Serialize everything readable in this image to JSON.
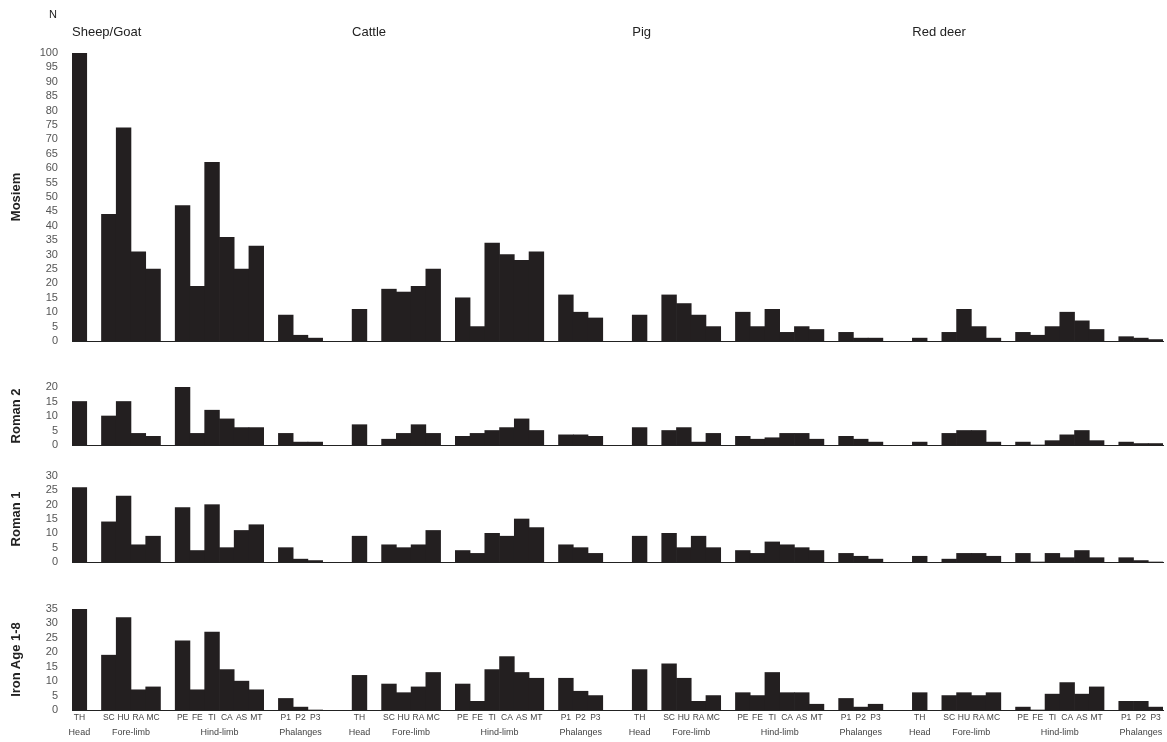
{
  "chart_data": [
    {
      "type": "bar",
      "ylabel": "Mosiem",
      "annotations": [
        "N",
        "Sheep/Goat",
        "Cattle",
        "Pig",
        "Red deer"
      ],
      "categories": [
        null,
        null,
        null,
        null,
        null,
        null,
        null,
        null,
        null,
        null,
        null,
        null,
        null,
        null,
        null,
        null,
        null,
        null,
        null,
        null,
        null,
        null,
        null,
        null,
        null,
        null,
        null,
        null,
        null,
        null,
        null,
        null,
        null,
        null,
        null,
        null,
        null,
        null,
        null,
        null,
        null,
        null,
        null,
        null,
        null,
        null,
        null,
        null,
        null,
        null,
        null,
        null,
        null,
        null,
        null,
        null,
        null,
        null,
        null,
        null,
        null,
        null,
        null,
        null,
        null,
        null,
        null,
        null,
        null,
        null,
        null,
        null,
        null,
        null
      ],
      "series": [
        {
          "color": "#231f20",
          "values": [
            100,
            null,
            44,
            74,
            31,
            25,
            null,
            47,
            19,
            62,
            36,
            25,
            33,
            null,
            9,
            2,
            1,
            null,
            null,
            null,
            null,
            null,
            null,
            null,
            null,
            null,
            null,
            null,
            null,
            null,
            null,
            null,
            null,
            null,
            null,
            null,
            null,
            null,
            null,
            null,
            null,
            null,
            null,
            null,
            null,
            null,
            null,
            null,
            null,
            null,
            null,
            null,
            null,
            null,
            null,
            null,
            null,
            null,
            null,
            null,
            null,
            null,
            null,
            null,
            null,
            null,
            null,
            null,
            null,
            null,
            null,
            null,
            null,
            null
          ]
        },
        {
          "color": "#231f20",
          "values": [
            null,
            null,
            null,
            null,
            null,
            null,
            null,
            null,
            null,
            null,
            null,
            null,
            null,
            null,
            null,
            null,
            null,
            null,
            null,
            11,
            null,
            18,
            17,
            19,
            25,
            null,
            15,
            5,
            34,
            30,
            28,
            31,
            null,
            16,
            10,
            8,
            null,
            null,
            null,
            null,
            null,
            null,
            null,
            null,
            null,
            null,
            null,
            null,
            null,
            null,
            null,
            null,
            null,
            null,
            null,
            null,
            null,
            null,
            null,
            null,
            null,
            null,
            null,
            null,
            null,
            null,
            null,
            null,
            null,
            null,
            null,
            null,
            null,
            null
          ]
        },
        {
          "color": "#231f20",
          "values": [
            null,
            null,
            null,
            null,
            null,
            null,
            null,
            null,
            null,
            null,
            null,
            null,
            null,
            null,
            null,
            null,
            null,
            null,
            null,
            null,
            null,
            null,
            null,
            null,
            null,
            null,
            null,
            null,
            null,
            null,
            null,
            null,
            null,
            null,
            null,
            null,
            null,
            null,
            9,
            null,
            16,
            13,
            9,
            5,
            null,
            10,
            5,
            11,
            3,
            5,
            4,
            null,
            3,
            1,
            1,
            null,
            null,
            null,
            null,
            null,
            null,
            null,
            null,
            null,
            null,
            null,
            null,
            null,
            null,
            null,
            null,
            null,
            null,
            null
          ]
        },
        {
          "color": "#231f20",
          "values": [
            null,
            null,
            null,
            null,
            null,
            null,
            null,
            null,
            null,
            null,
            null,
            null,
            null,
            null,
            null,
            null,
            null,
            null,
            null,
            null,
            null,
            null,
            null,
            null,
            null,
            null,
            null,
            null,
            null,
            null,
            null,
            null,
            null,
            null,
            null,
            null,
            null,
            null,
            null,
            null,
            null,
            null,
            null,
            null,
            null,
            null,
            null,
            null,
            null,
            null,
            null,
            null,
            null,
            null,
            null,
            null,
            null,
            1,
            null,
            3,
            11,
            5,
            1,
            null,
            3,
            2,
            5,
            10,
            7,
            4,
            null,
            1.5,
            1,
            0.5
          ]
        }
      ],
      "ylim": [
        0,
        100
      ],
      "yticks": [
        0,
        5,
        10,
        15,
        20,
        25,
        30,
        35,
        40,
        45,
        50,
        55,
        60,
        65,
        70,
        75,
        80,
        85,
        90,
        95,
        100
      ],
      "tick_labels": "y",
      "legend": false
    },
    {
      "type": "bar",
      "ylabel": "Roman 2",
      "categories": [
        null,
        null,
        null,
        null,
        null,
        null,
        null,
        null,
        null,
        null,
        null,
        null,
        null,
        null,
        null,
        null,
        null,
        null,
        null,
        null,
        null,
        null,
        null,
        null,
        null,
        null,
        null,
        null,
        null,
        null,
        null,
        null,
        null,
        null,
        null,
        null,
        null,
        null,
        null,
        null,
        null,
        null,
        null,
        null,
        null,
        null,
        null,
        null,
        null,
        null,
        null,
        null,
        null,
        null,
        null,
        null,
        null,
        null,
        null,
        null,
        null,
        null,
        null,
        null,
        null,
        null,
        null,
        null,
        null,
        null,
        null,
        null,
        null,
        null
      ],
      "series": [
        {
          "color": "#231f20",
          "values": [
            15,
            null,
            10,
            15,
            4,
            3,
            null,
            20,
            4,
            12,
            9,
            6,
            6,
            null,
            4,
            1,
            1,
            null,
            null,
            null,
            null,
            null,
            null,
            null,
            null,
            null,
            null,
            null,
            null,
            null,
            null,
            null,
            null,
            null,
            null,
            null,
            null,
            null,
            null,
            null,
            null,
            null,
            null,
            null,
            null,
            null,
            null,
            null,
            null,
            null,
            null,
            null,
            null,
            null,
            null,
            null,
            null,
            null,
            null,
            null,
            null,
            null,
            null,
            null,
            null,
            null,
            null,
            null,
            null,
            null,
            null,
            null,
            null,
            null
          ]
        },
        {
          "color": "#231f20",
          "values": [
            null,
            null,
            null,
            null,
            null,
            null,
            null,
            null,
            null,
            null,
            null,
            null,
            null,
            null,
            null,
            null,
            null,
            null,
            null,
            7,
            null,
            2,
            4,
            7,
            4,
            null,
            3,
            4,
            5,
            6,
            9,
            5,
            null,
            3.5,
            3.5,
            3,
            null,
            null,
            null,
            null,
            null,
            null,
            null,
            null,
            null,
            null,
            null,
            null,
            null,
            null,
            null,
            null,
            null,
            null,
            null,
            null,
            null,
            null,
            null,
            null,
            null,
            null,
            null,
            null,
            null,
            null,
            null,
            null,
            null,
            null,
            null,
            null,
            null,
            null
          ]
        },
        {
          "color": "#231f20",
          "values": [
            null,
            null,
            null,
            null,
            null,
            null,
            null,
            null,
            null,
            null,
            null,
            null,
            null,
            null,
            null,
            null,
            null,
            null,
            null,
            null,
            null,
            null,
            null,
            null,
            null,
            null,
            null,
            null,
            null,
            null,
            null,
            null,
            null,
            null,
            null,
            null,
            null,
            null,
            6,
            null,
            5,
            6,
            1,
            4,
            null,
            3,
            2,
            2.5,
            4,
            4,
            2,
            null,
            3,
            2,
            1,
            null,
            null,
            null,
            null,
            null,
            null,
            null,
            null,
            null,
            null,
            null,
            null,
            null,
            null,
            null,
            null,
            null,
            null,
            null
          ]
        },
        {
          "color": "#231f20",
          "values": [
            null,
            null,
            null,
            null,
            null,
            null,
            null,
            null,
            null,
            null,
            null,
            null,
            null,
            null,
            null,
            null,
            null,
            null,
            null,
            null,
            null,
            null,
            null,
            null,
            null,
            null,
            null,
            null,
            null,
            null,
            null,
            null,
            null,
            null,
            null,
            null,
            null,
            null,
            null,
            null,
            null,
            null,
            null,
            null,
            null,
            null,
            null,
            null,
            null,
            null,
            null,
            null,
            null,
            null,
            null,
            null,
            null,
            1,
            null,
            4,
            5,
            5,
            1,
            null,
            1,
            0,
            1.5,
            3.5,
            5,
            1.5,
            null,
            1,
            0.5,
            0.5
          ]
        }
      ],
      "ylim": [
        0,
        20
      ],
      "yticks": [
        0,
        5,
        10,
        15,
        20
      ],
      "tick_labels": "y",
      "legend": false
    },
    {
      "type": "bar",
      "ylabel": "Roman 1",
      "categories": [
        null,
        null,
        null,
        null,
        null,
        null,
        null,
        null,
        null,
        null,
        null,
        null,
        null,
        null,
        null,
        null,
        null,
        null,
        null,
        null,
        null,
        null,
        null,
        null,
        null,
        null,
        null,
        null,
        null,
        null,
        null,
        null,
        null,
        null,
        null,
        null,
        null,
        null,
        null,
        null,
        null,
        null,
        null,
        null,
        null,
        null,
        null,
        null,
        null,
        null,
        null,
        null,
        null,
        null,
        null,
        null,
        null,
        null,
        null,
        null,
        null,
        null,
        null,
        null,
        null,
        null,
        null,
        null,
        null,
        null,
        null,
        null,
        null,
        null
      ],
      "series": [
        {
          "color": "#231f20",
          "values": [
            26,
            null,
            14,
            23,
            6,
            9,
            null,
            19,
            4,
            20,
            5,
            11,
            13,
            null,
            5,
            1,
            0.5,
            null,
            null,
            null,
            null,
            null,
            null,
            null,
            null,
            null,
            null,
            null,
            null,
            null,
            null,
            null,
            null,
            null,
            null,
            null,
            null,
            null,
            null,
            null,
            null,
            null,
            null,
            null,
            null,
            null,
            null,
            null,
            null,
            null,
            null,
            null,
            null,
            null,
            null,
            null,
            null,
            null,
            null,
            null,
            null,
            null,
            null,
            null,
            null,
            null,
            null,
            null,
            null,
            null,
            null,
            null,
            null,
            null
          ]
        },
        {
          "color": "#231f20",
          "values": [
            null,
            null,
            null,
            null,
            null,
            null,
            null,
            null,
            null,
            null,
            null,
            null,
            null,
            null,
            null,
            null,
            null,
            null,
            null,
            9,
            null,
            6,
            5,
            6,
            11,
            null,
            4,
            3,
            10,
            9,
            15,
            12,
            null,
            6,
            5,
            3,
            null,
            null,
            null,
            null,
            null,
            null,
            null,
            null,
            null,
            null,
            null,
            null,
            null,
            null,
            null,
            null,
            null,
            null,
            null,
            null,
            null,
            null,
            null,
            null,
            null,
            null,
            null,
            null,
            null,
            null,
            null,
            null,
            null,
            null,
            null,
            null,
            null,
            null
          ]
        },
        {
          "color": "#231f20",
          "values": [
            null,
            null,
            null,
            null,
            null,
            null,
            null,
            null,
            null,
            null,
            null,
            null,
            null,
            null,
            null,
            null,
            null,
            null,
            null,
            null,
            null,
            null,
            null,
            null,
            null,
            null,
            null,
            null,
            null,
            null,
            null,
            null,
            null,
            null,
            null,
            null,
            null,
            null,
            9,
            null,
            10,
            5,
            9,
            5,
            null,
            4,
            3,
            7,
            6,
            5,
            4,
            null,
            3,
            2,
            1,
            null,
            null,
            null,
            null,
            null,
            null,
            null,
            null,
            null,
            null,
            null,
            null,
            null,
            null,
            null,
            null,
            null,
            null,
            null
          ]
        },
        {
          "color": "#231f20",
          "values": [
            null,
            null,
            null,
            null,
            null,
            null,
            null,
            null,
            null,
            null,
            null,
            null,
            null,
            null,
            null,
            null,
            null,
            null,
            null,
            null,
            null,
            null,
            null,
            null,
            null,
            null,
            null,
            null,
            null,
            null,
            null,
            null,
            null,
            null,
            null,
            null,
            null,
            null,
            null,
            null,
            null,
            null,
            null,
            null,
            null,
            null,
            null,
            null,
            null,
            null,
            null,
            null,
            null,
            null,
            null,
            null,
            null,
            2,
            null,
            1,
            3,
            3,
            2,
            null,
            3,
            0,
            3,
            1.5,
            4,
            1.5,
            null,
            1.5,
            0.5,
            0
          ]
        }
      ],
      "ylim": [
        0,
        30
      ],
      "yticks": [
        0,
        5,
        10,
        15,
        20,
        25,
        30
      ],
      "tick_labels": "y",
      "legend": false
    },
    {
      "type": "bar",
      "ylabel": "Iron Age 1-8",
      "annotations": [
        "Head",
        "Fore-limb",
        "Hind-limb",
        "Phalanges",
        "Head",
        "Fore-limb",
        "Hind-limb",
        "Phalanges",
        "Head",
        "Fore-limb",
        "Hind-limb",
        "Phalanges",
        "Head",
        "Fore-limb",
        "Hind-limb",
        "Phalanges"
      ],
      "categories": [
        "TH",
        null,
        "SC",
        "HU",
        "RA",
        "MC",
        null,
        "PE",
        "FE",
        "TI",
        "CA",
        "AS",
        "MT",
        null,
        "P1",
        "P2",
        "P3",
        null,
        null,
        "TH",
        null,
        "SC",
        "HU",
        "RA",
        "MC",
        null,
        "PE",
        "FE",
        "TI",
        "CA",
        "AS",
        "MT",
        null,
        "P1",
        "P2",
        "P3",
        null,
        null,
        "TH",
        null,
        "SC",
        "HU",
        "RA",
        "MC",
        null,
        "PE",
        "FE",
        "TI",
        "CA",
        "AS",
        "MT",
        null,
        "P1",
        "P2",
        "P3",
        null,
        null,
        "TH",
        null,
        "SC",
        "HU",
        "RA",
        "MC",
        null,
        "PE",
        "FE",
        "TI",
        "CA",
        "AS",
        "MT",
        null,
        "P1",
        "P2",
        "P3"
      ],
      "series": [
        {
          "color": "#231f20",
          "values": [
            35,
            null,
            19,
            32,
            7,
            8,
            null,
            24,
            7,
            27,
            14,
            10,
            7,
            null,
            4,
            1,
            0,
            null,
            null,
            null,
            null,
            null,
            null,
            null,
            null,
            null,
            null,
            null,
            null,
            null,
            null,
            null,
            null,
            null,
            null,
            null,
            null,
            null,
            null,
            null,
            null,
            null,
            null,
            null,
            null,
            null,
            null,
            null,
            null,
            null,
            null,
            null,
            null,
            null,
            null,
            null,
            null,
            null,
            null,
            null,
            null,
            null,
            null,
            null,
            null,
            null,
            null,
            null,
            null,
            null,
            null,
            null,
            null,
            null
          ]
        },
        {
          "color": "#231f20",
          "values": [
            null,
            null,
            null,
            null,
            null,
            null,
            null,
            null,
            null,
            null,
            null,
            null,
            null,
            null,
            null,
            null,
            null,
            null,
            null,
            12,
            null,
            9,
            6,
            8,
            13,
            null,
            9,
            3,
            14,
            18.5,
            13,
            11,
            null,
            11,
            6.5,
            5,
            null,
            null,
            null,
            null,
            null,
            null,
            null,
            null,
            null,
            null,
            null,
            null,
            null,
            null,
            null,
            null,
            null,
            null,
            null,
            null,
            null,
            null,
            null,
            null,
            null,
            null,
            null,
            null,
            null,
            null,
            null,
            null,
            null,
            null,
            null,
            null,
            null,
            null
          ]
        },
        {
          "color": "#231f20",
          "values": [
            null,
            null,
            null,
            null,
            null,
            null,
            null,
            null,
            null,
            null,
            null,
            null,
            null,
            null,
            null,
            null,
            null,
            null,
            null,
            null,
            null,
            null,
            null,
            null,
            null,
            null,
            null,
            null,
            null,
            null,
            null,
            null,
            null,
            null,
            null,
            null,
            null,
            null,
            14,
            null,
            16,
            11,
            3,
            5,
            null,
            6,
            5,
            13,
            6,
            6,
            2,
            null,
            4,
            1,
            2,
            null,
            null,
            null,
            null,
            null,
            null,
            null,
            null,
            null,
            null,
            null,
            null,
            null,
            null,
            null,
            null,
            null,
            null,
            null
          ]
        },
        {
          "color": "#231f20",
          "values": [
            null,
            null,
            null,
            null,
            null,
            null,
            null,
            null,
            null,
            null,
            null,
            null,
            null,
            null,
            null,
            null,
            null,
            null,
            null,
            null,
            null,
            null,
            null,
            null,
            null,
            null,
            null,
            null,
            null,
            null,
            null,
            null,
            null,
            null,
            null,
            null,
            null,
            null,
            null,
            null,
            null,
            null,
            null,
            null,
            null,
            null,
            null,
            null,
            null,
            null,
            null,
            null,
            null,
            null,
            null,
            null,
            null,
            6,
            null,
            5,
            6,
            5,
            6,
            null,
            1,
            0,
            5.5,
            9.5,
            5.5,
            8,
            null,
            3,
            3,
            1
          ]
        }
      ],
      "ylim": [
        0,
        35
      ],
      "yticks": [
        0,
        5,
        10,
        15,
        20,
        25,
        30,
        35
      ],
      "legend": false
    }
  ]
}
